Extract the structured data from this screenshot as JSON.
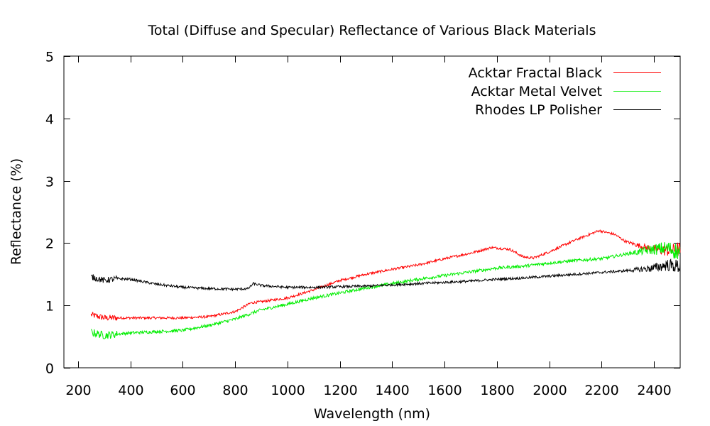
{
  "chart_data": {
    "type": "line",
    "title": "Total (Diffuse and Specular) Reflectance of Various Black Materials",
    "xlabel": "Wavelength (nm)",
    "ylabel": "Reflectance (%)",
    "xlim": [
      146,
      2500
    ],
    "ylim": [
      0,
      5
    ],
    "xticks": [
      200,
      400,
      600,
      800,
      1000,
      1200,
      1400,
      1600,
      1800,
      2000,
      2200,
      2400
    ],
    "yticks": [
      0,
      1,
      2,
      3,
      4,
      5
    ],
    "grid": false,
    "legend_position": "top-right",
    "series": [
      {
        "name": "Acktar Fractal Black",
        "color": "#ff0000",
        "x": [
          250,
          300,
          400,
          500,
          600,
          700,
          800,
          860,
          900,
          1000,
          1100,
          1200,
          1300,
          1400,
          1500,
          1600,
          1700,
          1780,
          1850,
          1900,
          1940,
          2000,
          2100,
          2190,
          2250,
          2290,
          2350,
          2400,
          2450,
          2500
        ],
        "y": [
          0.85,
          0.8,
          0.8,
          0.8,
          0.8,
          0.82,
          0.9,
          1.04,
          1.06,
          1.12,
          1.25,
          1.4,
          1.5,
          1.58,
          1.65,
          1.75,
          1.84,
          1.93,
          1.9,
          1.78,
          1.76,
          1.86,
          2.05,
          2.2,
          2.14,
          2.03,
          1.95,
          1.9,
          1.88,
          1.9
        ],
        "noise": 0.02
      },
      {
        "name": "Acktar Metal Velvet",
        "color": "#00ee00",
        "x": [
          250,
          300,
          400,
          500,
          600,
          700,
          800,
          860,
          900,
          1000,
          1100,
          1200,
          1300,
          1400,
          1500,
          1600,
          1700,
          1800,
          1900,
          2000,
          2100,
          2200,
          2300,
          2400,
          2450,
          2500
        ],
        "y": [
          0.57,
          0.52,
          0.56,
          0.58,
          0.6,
          0.68,
          0.78,
          0.87,
          0.93,
          1.02,
          1.12,
          1.2,
          1.28,
          1.35,
          1.42,
          1.48,
          1.54,
          1.6,
          1.63,
          1.68,
          1.72,
          1.75,
          1.83,
          1.9,
          1.92,
          1.85
        ],
        "noise": 0.025
      },
      {
        "name": "Rhodes LP Polisher",
        "color": "#000000",
        "x": [
          250,
          300,
          350,
          400,
          500,
          600,
          700,
          800,
          850,
          870,
          900,
          1000,
          1100,
          1200,
          1300,
          1400,
          1500,
          1600,
          1700,
          1800,
          1900,
          2000,
          2100,
          2200,
          2300,
          2400,
          2450,
          2500
        ],
        "y": [
          1.46,
          1.4,
          1.43,
          1.42,
          1.34,
          1.29,
          1.27,
          1.26,
          1.27,
          1.35,
          1.32,
          1.29,
          1.29,
          1.3,
          1.31,
          1.33,
          1.35,
          1.37,
          1.39,
          1.42,
          1.44,
          1.47,
          1.5,
          1.53,
          1.56,
          1.6,
          1.65,
          1.62
        ],
        "noise": 0.02
      }
    ]
  }
}
